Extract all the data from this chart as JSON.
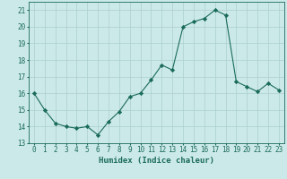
{
  "x": [
    0,
    1,
    2,
    3,
    4,
    5,
    6,
    7,
    8,
    9,
    10,
    11,
    12,
    13,
    14,
    15,
    16,
    17,
    18,
    19,
    20,
    21,
    22,
    23
  ],
  "y": [
    16,
    15,
    14.2,
    14,
    13.9,
    14,
    13.5,
    14.3,
    14.9,
    15.8,
    16.0,
    16.8,
    17.7,
    17.4,
    20.0,
    20.3,
    20.5,
    21.0,
    20.7,
    16.7,
    16.4,
    16.1,
    16.6,
    16.2
  ],
  "line_color": "#1a6b5a",
  "marker": "D",
  "marker_size": 2.2,
  "bg_color": "#cce9e9",
  "grid_color": "#aacfcf",
  "xlabel": "Humidex (Indice chaleur)",
  "ylim": [
    13,
    21.5
  ],
  "xlim": [
    -0.5,
    23.5
  ],
  "yticks": [
    13,
    14,
    15,
    16,
    17,
    18,
    19,
    20,
    21
  ],
  "xticks": [
    0,
    1,
    2,
    3,
    4,
    5,
    6,
    7,
    8,
    9,
    10,
    11,
    12,
    13,
    14,
    15,
    16,
    17,
    18,
    19,
    20,
    21,
    22,
    23
  ],
  "tick_label_fontsize": 5.5,
  "xlabel_fontsize": 6.5
}
